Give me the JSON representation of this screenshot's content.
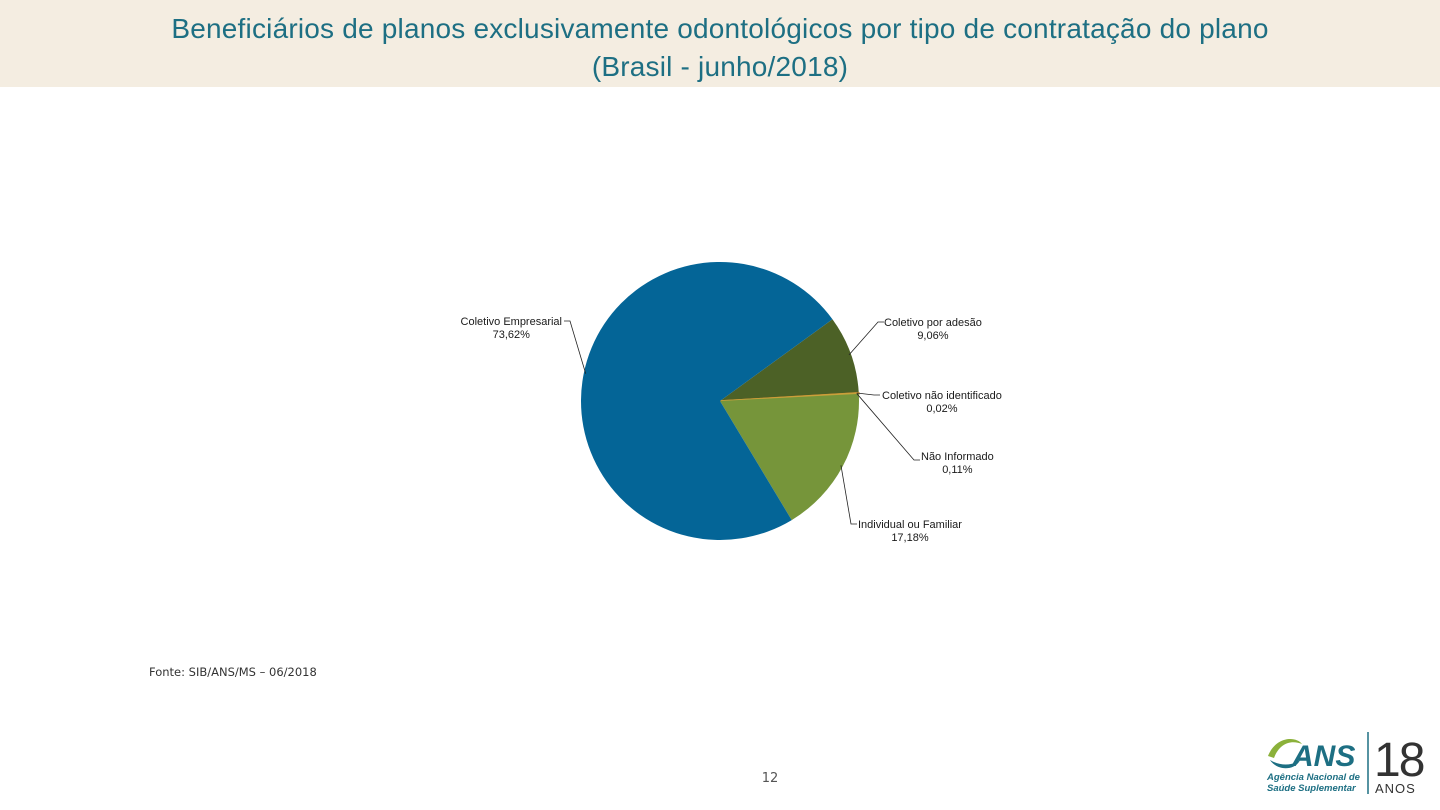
{
  "header": {
    "title_line1": "Beneficiários de planos exclusivamente odontológicos por tipo de contratação do plano",
    "title_line2": "(Brasil - junho/2018)"
  },
  "chart_data": {
    "type": "pie",
    "title": "Beneficiários de planos exclusivamente odontológicos por tipo de contratação do plano (Brasil - junho/2018)",
    "slices": [
      {
        "name": "Coletivo por adesão",
        "value": 9.06,
        "value_label": "9,06%",
        "color": "#4c6126"
      },
      {
        "name": "Coletivo não identificado",
        "value": 0.02,
        "value_label": "0,02%",
        "color": "#e07b2e"
      },
      {
        "name": "Não Informado",
        "value": 0.11,
        "value_label": "0,11%",
        "color": "#c9a13a"
      },
      {
        "name": "Individual ou Familiar",
        "value": 17.18,
        "value_label": "17,18%",
        "color": "#76953a"
      },
      {
        "name": "Coletivo Empresarial",
        "value": 73.62,
        "value_label": "73,62%",
        "color": "#046597"
      }
    ]
  },
  "footer": {
    "source": "Fonte: SIB/ANS/MS – 06/2018",
    "page_number": "12"
  },
  "logo": {
    "brand": "ANS",
    "line1": "Agência Nacional de",
    "line2": "Saúde Suplementar",
    "years": "18",
    "years_word": "ANOS",
    "brand_color": "#1d6f83",
    "accent_color": "#8bb13a"
  }
}
